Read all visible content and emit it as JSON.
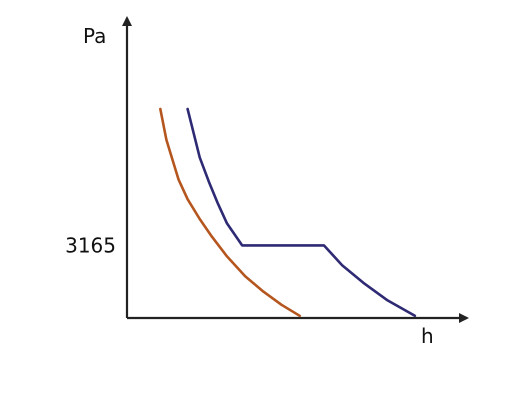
{
  "chart_data": {
    "type": "line",
    "title": "",
    "xlabel": "h",
    "ylabel": "Pa",
    "xlim": [
      0,
      100
    ],
    "ylim": [
      0,
      100
    ],
    "yticks": [
      {
        "value": 33,
        "label": "3165"
      }
    ],
    "axis_color": "#222222",
    "series": [
      {
        "color": "#b5561f",
        "points": [
          [
            11,
            95
          ],
          [
            12,
            88
          ],
          [
            13,
            81
          ],
          [
            15,
            72
          ],
          [
            17,
            63
          ],
          [
            20,
            54
          ],
          [
            24,
            45
          ],
          [
            28,
            37
          ],
          [
            33,
            28
          ],
          [
            39,
            19
          ],
          [
            45,
            12
          ],
          [
            51,
            6
          ],
          [
            57,
            1
          ]
        ]
      },
      {
        "color": "#2e2a74",
        "points": [
          [
            20,
            95
          ],
          [
            22,
            84
          ],
          [
            24,
            73
          ],
          [
            27,
            62
          ],
          [
            30,
            52
          ],
          [
            33,
            43
          ],
          [
            38,
            33
          ],
          [
            65,
            33
          ],
          [
            71,
            24
          ],
          [
            78,
            16
          ],
          [
            86,
            8
          ],
          [
            95,
            1
          ]
        ]
      }
    ]
  }
}
